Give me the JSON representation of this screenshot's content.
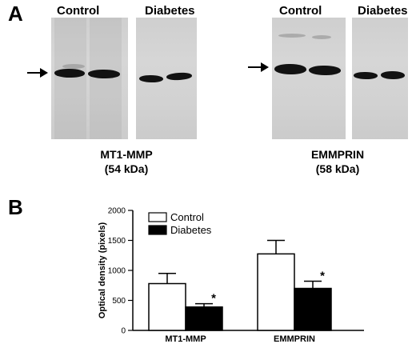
{
  "panel_a": {
    "letter": "A",
    "left_blot": {
      "groups": [
        "Control",
        "Diabetes"
      ],
      "protein": "MT1-MMP",
      "weight": "(54 kDa)"
    },
    "right_blot": {
      "groups": [
        "Control",
        "Diabetes"
      ],
      "protein": "EMMPRIN",
      "weight": "(58 kDa)"
    }
  },
  "panel_b": {
    "letter": "B"
  },
  "chart_data": {
    "type": "bar",
    "categories": [
      "MT1-MMP",
      "EMMPRIN"
    ],
    "series": [
      {
        "name": "Control",
        "values": [
          780,
          1275
        ],
        "errors": [
          170,
          225
        ],
        "color": "#ffffff"
      },
      {
        "name": "Diabetes",
        "values": [
          390,
          700
        ],
        "errors": [
          55,
          120
        ],
        "color": "#000000"
      }
    ],
    "significance": [
      "",
      "*"
    ],
    "significance_marks": [
      [
        "",
        "*"
      ],
      [
        "",
        "*"
      ]
    ],
    "ylabel": "Optical density (pixels)",
    "xlabel": "",
    "ylim": [
      0,
      2000
    ],
    "yticks": [
      "0",
      "500",
      "1000",
      "1500",
      "2000"
    ],
    "legend_position": "top-left",
    "grid": false
  }
}
